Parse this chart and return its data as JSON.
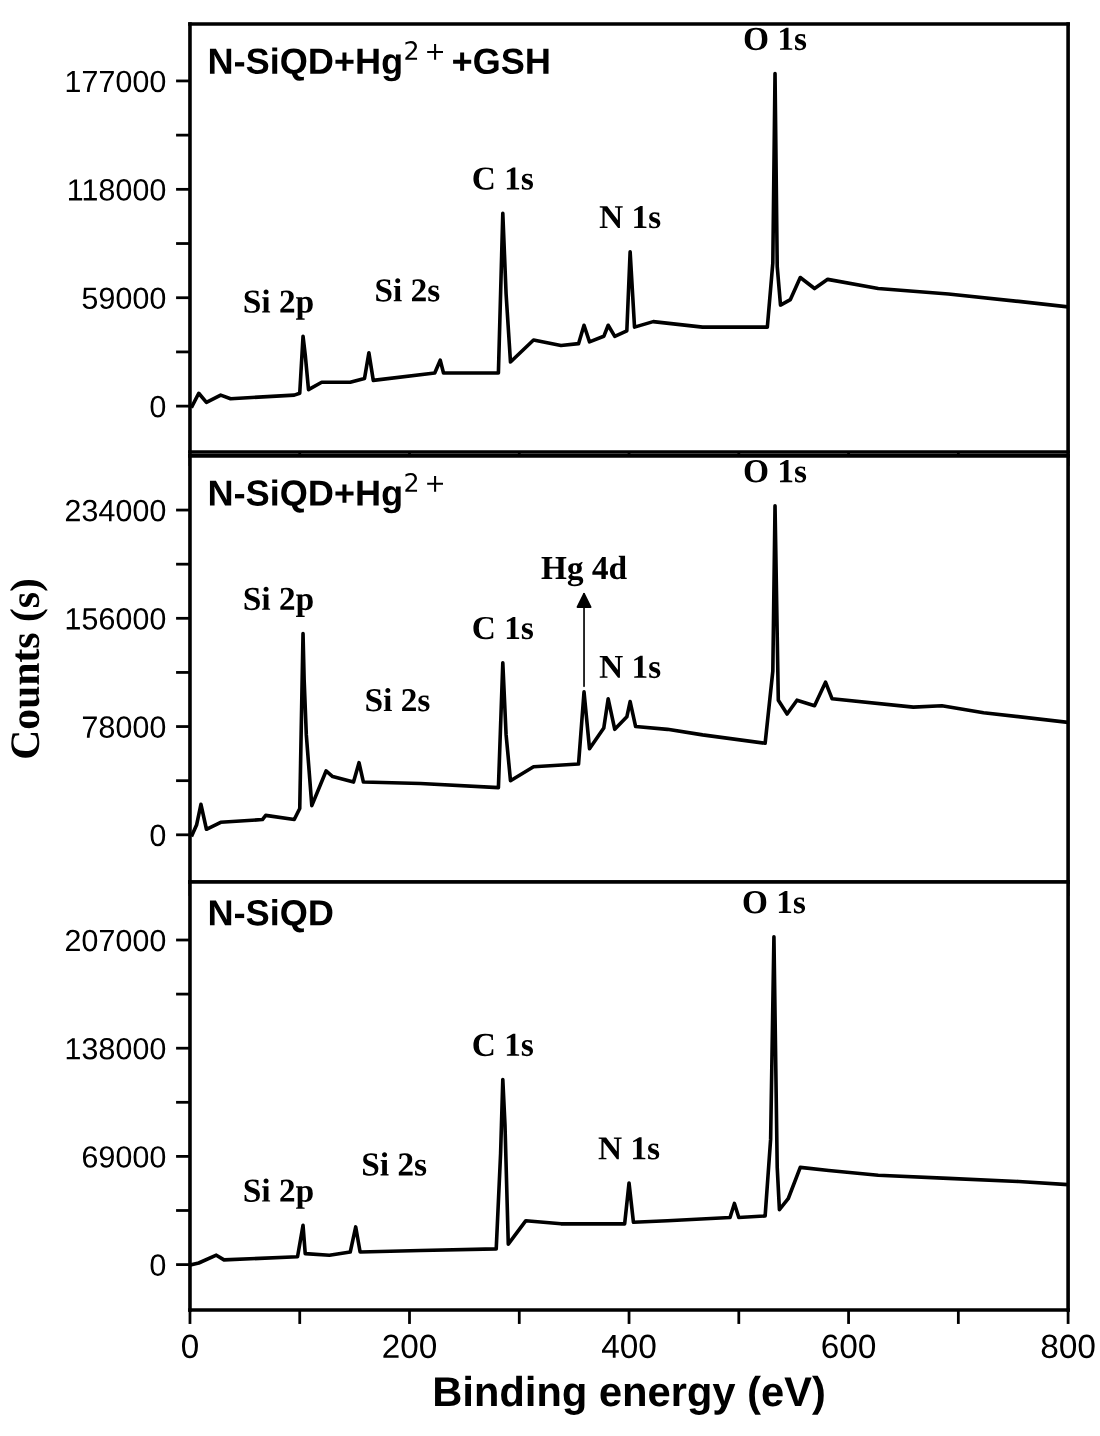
{
  "chart_data": [
    {
      "type": "line",
      "title": "N-SiQD+Hg$^{2+}$+GSH",
      "tick_labels": "y",
      "grid": false,
      "legend": false,
      "marker": "none",
      "line_style": "solid",
      "xlim": [
        0,
        800
      ],
      "xticks": [
        0,
        {
          "value": 100,
          "label": null
        },
        200,
        {
          "value": 300,
          "label": null
        },
        400,
        {
          "value": 500,
          "label": null
        },
        600,
        {
          "value": 700,
          "label": null
        },
        800
      ],
      "ylim": [
        -25000,
        208000
      ],
      "yticks": [
        0,
        {
          "value": 29500,
          "label": null
        },
        59000,
        {
          "value": 88500,
          "label": null
        },
        118000,
        {
          "value": 147500,
          "label": null
        },
        177000
      ],
      "series": [
        {
          "color": "#000000",
          "x": [
            2,
            8,
            15,
            28,
            37,
            95,
            100,
            103,
            105,
            108,
            120,
            146,
            159,
            163,
            167,
            223,
            228,
            231,
            281,
            285,
            288,
            292,
            313,
            338,
            354,
            359,
            364,
            377,
            381,
            387,
            398,
            401,
            405,
            422,
            467,
            526,
            531,
            533,
            535,
            538,
            547,
            556,
            569,
            581,
            627,
            691,
            755,
            800
          ],
          "values": [
            0,
            7000,
            2000,
            6000,
            4000,
            6000,
            7000,
            38000,
            28000,
            9000,
            13000,
            13000,
            15000,
            29000,
            14000,
            18000,
            25000,
            18000,
            18000,
            105000,
            61000,
            24000,
            36000,
            33000,
            34000,
            44000,
            35000,
            38000,
            44000,
            38000,
            41000,
            84000,
            43000,
            46000,
            43000,
            43000,
            78000,
            181000,
            76000,
            55000,
            58000,
            70000,
            64000,
            69000,
            64000,
            61000,
            57000,
            54000
          ]
        }
      ],
      "annotations": [
        {
          "text": "Si 2p",
          "x": 103,
          "y": 38000
        },
        {
          "text": "Si 2s",
          "x": 163,
          "y": 29000
        },
        {
          "text": "C 1s",
          "x": 285,
          "y": 105000
        },
        {
          "text": "N 1s",
          "x": 401,
          "y": 84000
        },
        {
          "text": "O 1s",
          "x": 533,
          "y": 181000
        }
      ]
    },
    {
      "type": "line",
      "title": "N-SiQD+Hg$^{2+}$",
      "ylabel": "Counts (s)",
      "tick_labels": "y",
      "grid": false,
      "legend": false,
      "marker": "none",
      "line_style": "solid",
      "xlim": [
        0,
        800
      ],
      "xticks": [
        0,
        {
          "value": 100,
          "label": null
        },
        200,
        {
          "value": 300,
          "label": null
        },
        400,
        {
          "value": 500,
          "label": null
        },
        600,
        {
          "value": 700,
          "label": null
        },
        800
      ],
      "ylim": [
        -34000,
        273000
      ],
      "yticks": [
        0,
        {
          "value": 39000,
          "label": null
        },
        78000,
        {
          "value": 117000,
          "label": null
        },
        156000,
        {
          "value": 195000,
          "label": null
        },
        234000
      ],
      "series": [
        {
          "color": "#000000",
          "x": [
            2,
            6,
            10,
            15,
            28,
            66,
            69,
            95,
            100,
            103,
            104,
            106,
            111,
            124,
            130,
            149,
            154,
            158,
            210,
            281,
            285,
            288,
            292,
            313,
            354,
            359,
            364,
            377,
            381,
            387,
            398,
            401,
            406,
            435,
            467,
            524,
            531,
            533,
            536,
            544,
            553,
            569,
            579,
            585,
            659,
            685,
            723,
            800
          ],
          "values": [
            0,
            7000,
            22000,
            4000,
            9000,
            11000,
            14000,
            11000,
            19000,
            145000,
            112000,
            72000,
            21000,
            46000,
            42000,
            38000,
            52000,
            38000,
            37000,
            34000,
            124000,
            72000,
            39000,
            49000,
            51000,
            103000,
            62000,
            77000,
            98000,
            76000,
            85000,
            96000,
            78000,
            76000,
            72000,
            66000,
            118000,
            237000,
            97000,
            87000,
            97000,
            93000,
            110000,
            98000,
            92000,
            93000,
            88000,
            81000
          ]
        }
      ],
      "annotations": [
        {
          "text": "Si 2p",
          "x": 103,
          "y": 145000
        },
        {
          "text": "Si 2s",
          "x": 154,
          "y": 52000
        },
        {
          "text": "Hg 4d",
          "x": 359,
          "y": 103000
        },
        {
          "text": "C 1s",
          "x": 285,
          "y": 124000
        },
        {
          "text": "N 1s",
          "x": 401,
          "y": 96000
        },
        {
          "text": "O 1s",
          "x": 533,
          "y": 237000
        }
      ]
    },
    {
      "type": "line",
      "title": "N-SiQD",
      "xlabel": "Binding energy (eV)",
      "grid": false,
      "legend": false,
      "marker": "none",
      "line_style": "solid",
      "xlim": [
        0,
        800
      ],
      "xticks": [
        0,
        {
          "value": 100,
          "label": null
        },
        200,
        {
          "value": 300,
          "label": null
        },
        400,
        {
          "value": 500,
          "label": null
        },
        600,
        {
          "value": 700,
          "label": null
        },
        800
      ],
      "ylim": [
        -29000,
        244000
      ],
      "yticks": [
        0,
        {
          "value": 34500,
          "label": null
        },
        69000,
        {
          "value": 103500,
          "label": null
        },
        138000,
        {
          "value": 172500,
          "label": null
        },
        207000
      ],
      "series": [
        {
          "color": "#000000",
          "x": [
            2,
            8,
            24,
            31,
            98,
            103,
            105,
            127,
            146,
            151,
            155,
            210,
            279,
            283,
            285,
            287,
            290,
            306,
            338,
            396,
            400,
            404,
            435,
            492,
            496,
            500,
            524,
            529,
            532,
            535,
            537,
            545,
            556,
            582,
            627,
            691,
            755,
            800
          ],
          "values": [
            0,
            1000,
            6000,
            3000,
            5000,
            25000,
            7000,
            6000,
            8000,
            24000,
            8000,
            9000,
            10000,
            71000,
            118000,
            89000,
            13000,
            28000,
            26000,
            26000,
            52000,
            27000,
            28000,
            30000,
            39000,
            30000,
            31000,
            80000,
            209000,
            62000,
            35000,
            42000,
            62000,
            60000,
            57000,
            55000,
            53000,
            51000
          ]
        }
      ],
      "annotations": [
        {
          "text": "Si 2p",
          "x": 103,
          "y": 25000
        },
        {
          "text": "Si 2s",
          "x": 151,
          "y": 24000
        },
        {
          "text": "C 1s",
          "x": 285,
          "y": 118000
        },
        {
          "text": "N 1s",
          "x": 400,
          "y": 52000
        },
        {
          "text": "O 1s",
          "x": 532,
          "y": 209000
        }
      ]
    }
  ]
}
